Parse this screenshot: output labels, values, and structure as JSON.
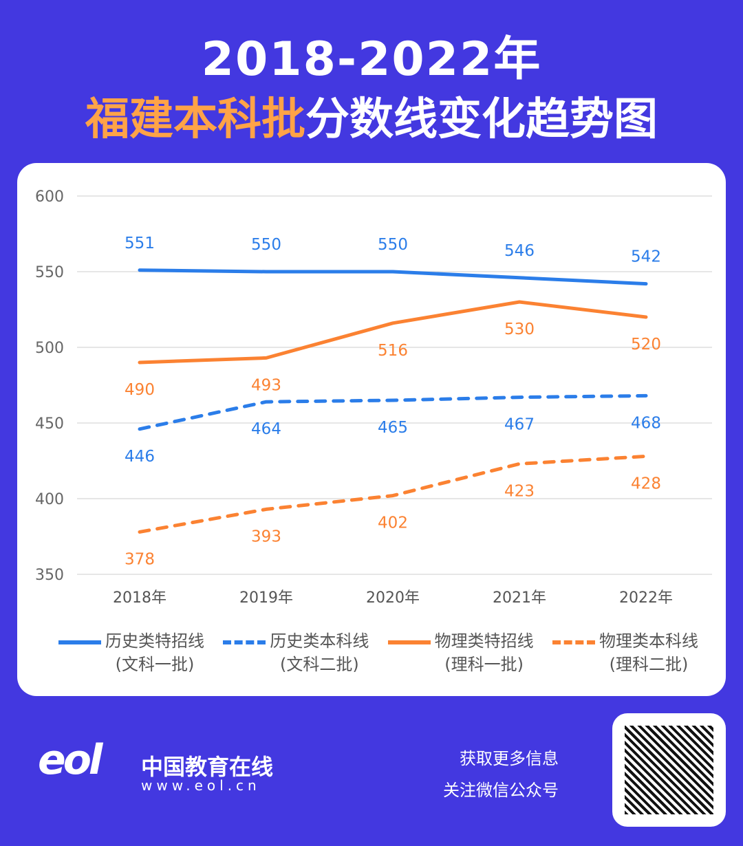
{
  "title": {
    "line1": "2018-2022年",
    "highlight": "福建本科批",
    "rest": "分数线变化趋势图"
  },
  "chart_data": {
    "type": "line",
    "categories": [
      "2018年",
      "2019年",
      "2020年",
      "2021年",
      "2022年"
    ],
    "ylim": [
      350,
      600
    ],
    "yticks": [
      350,
      400,
      450,
      500,
      550,
      600
    ],
    "grid": true,
    "legend_placement": "bottom",
    "series": [
      {
        "name": "历史类特招线",
        "sub": "(文科一批)",
        "values": [
          551,
          550,
          550,
          546,
          542
        ],
        "color": "#2b7de9",
        "dashed": false,
        "label_pos": "above"
      },
      {
        "name": "历史类本科线",
        "sub": "(文科二批)",
        "values": [
          446,
          464,
          465,
          467,
          468
        ],
        "color": "#2b7de9",
        "dashed": true,
        "label_pos": "below"
      },
      {
        "name": "物理类特招线",
        "sub": "(理科一批)",
        "values": [
          490,
          493,
          516,
          530,
          520
        ],
        "color": "#fb8232",
        "dashed": false,
        "label_pos": "below"
      },
      {
        "name": "物理类本科线",
        "sub": "(理科二批)",
        "values": [
          378,
          393,
          402,
          423,
          428
        ],
        "color": "#fb8232",
        "dashed": true,
        "label_pos": "below"
      }
    ]
  },
  "footer": {
    "brand": "中国教育在线",
    "url": "www.eol.cn",
    "logo": "eol",
    "follow1": "获取更多信息",
    "follow2": "关注微信公众号"
  },
  "colors": {
    "background": "#4338e0",
    "highlight": "#ffa347"
  }
}
